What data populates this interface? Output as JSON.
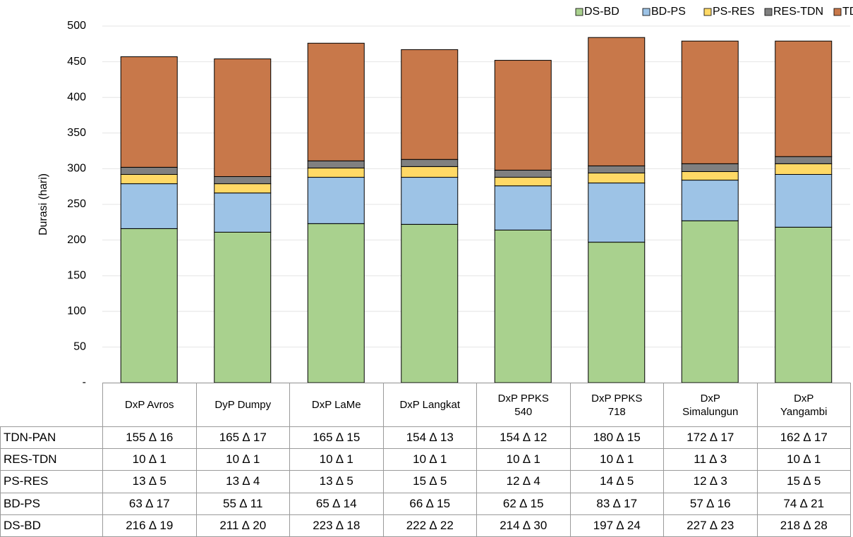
{
  "chart_data": {
    "type": "bar",
    "stacked": true,
    "ylabel": "Durasi (hari)",
    "categories": [
      "DxP Avros",
      "DyP Dumpy",
      "DxP LaMe",
      "DxP Langkat",
      "DxP PPKS 540",
      "DxP PPKS 718",
      "DxP Simalungun",
      "DxP Yangambi"
    ],
    "series": [
      {
        "name": "DS-BD",
        "color": "#a9d18e",
        "values": [
          216,
          211,
          223,
          222,
          214,
          197,
          227,
          218
        ],
        "value_labels": [
          "216 ∆ 19",
          "211 ∆ 20",
          "223 ∆ 18",
          "222 ∆ 22",
          "214 ∆ 30",
          "197 ∆ 24",
          "227 ∆ 23",
          "218 ∆ 28"
        ]
      },
      {
        "name": "BD-PS",
        "color": "#9dc3e6",
        "values": [
          63,
          55,
          65,
          66,
          62,
          83,
          57,
          74
        ],
        "value_labels": [
          "63 ∆ 17",
          "55 ∆ 11",
          "65 ∆ 14",
          "66 ∆ 15",
          "62 ∆ 15",
          "83 ∆ 17",
          "57 ∆ 16",
          "74 ∆ 21"
        ]
      },
      {
        "name": "PS-RES",
        "color": "#ffd966",
        "values": [
          13,
          13,
          13,
          15,
          12,
          14,
          12,
          15
        ],
        "value_labels": [
          "13 ∆ 5",
          "13 ∆ 4",
          "13 ∆ 5",
          "15 ∆ 5",
          "12 ∆ 4",
          "14 ∆ 5",
          "12 ∆ 3",
          "15 ∆ 5"
        ]
      },
      {
        "name": "RES-TDN",
        "color": "#808080",
        "values": [
          10,
          10,
          10,
          10,
          10,
          10,
          11,
          10
        ],
        "value_labels": [
          "10 ∆ 1",
          "10 ∆ 1",
          "10 ∆ 1",
          "10 ∆ 1",
          "10 ∆ 1",
          "10 ∆ 1",
          "11 ∆ 3",
          "10 ∆ 1"
        ]
      },
      {
        "name": "TDN-PAN",
        "color": "#c8784a",
        "values": [
          155,
          165,
          165,
          154,
          154,
          180,
          172,
          162
        ],
        "value_labels": [
          "155 ∆ 16",
          "165 ∆ 17",
          "165 ∆ 15",
          "154 ∆ 13",
          "154 ∆ 12",
          "180 ∆ 15",
          "172 ∆ 17",
          "162 ∆ 17"
        ]
      }
    ],
    "ylim": [
      0,
      500
    ],
    "yticks": [
      {
        "value": 0,
        "label": "-"
      },
      50,
      100,
      150,
      200,
      250,
      300,
      350,
      400,
      450,
      500
    ],
    "grid": true,
    "legend": "top-right"
  }
}
